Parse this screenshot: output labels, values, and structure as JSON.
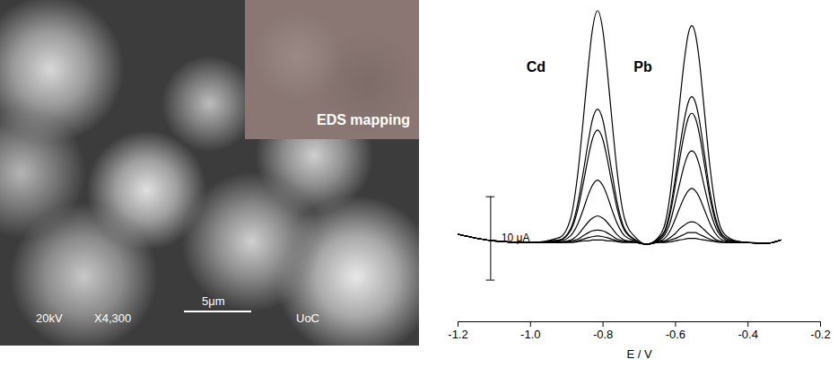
{
  "image_panel": {
    "labels": [
      "20kV",
      "X4,300",
      "5μm",
      "UoC"
    ],
    "inset": "EDS mapping"
  },
  "chart_data": {
    "type": "line",
    "x_label": "E / V",
    "color": "#000000",
    "tick_labels": "x",
    "xlim": [
      -1.2,
      -0.2
    ],
    "xticks": [
      -1.2,
      {
        "value": -1,
        "label": "-1.0"
      },
      -0.8,
      -0.6,
      -0.4,
      -0.2
    ],
    "ylim": [
      -9.5,
      28.5
    ],
    "yticks": [],
    "annotations": [
      {
        "text": "Cd",
        "x": -0.985,
        "y": 21
      },
      {
        "text": "Pb",
        "x": -0.69,
        "y": 21
      }
    ],
    "scale_bar": {
      "x": -1.11,
      "from": -4.5,
      "to": 5.5,
      "label": "10 μA"
    },
    "x": [
      -1.2,
      -1.1,
      -1.0,
      -0.92,
      -0.89,
      -0.87,
      -0.855,
      -0.84,
      -0.83,
      -0.815,
      -0.8,
      -0.79,
      -0.775,
      -0.76,
      -0.74,
      -0.71,
      -0.68,
      -0.65,
      -0.63,
      -0.615,
      -0.6,
      -0.59,
      -0.575,
      -0.565,
      -0.555,
      -0.545,
      -0.535,
      -0.52,
      -0.505,
      -0.49,
      -0.47,
      -0.44,
      -0.4,
      -0.35,
      -0.31
    ],
    "series": [
      {
        "values": [
          1.0,
          0.2,
          0,
          0.6,
          2.8,
          8.1,
          14.5,
          21.4,
          25.3,
          27.8,
          25.3,
          21.4,
          14.5,
          8.1,
          2.8,
          0.6,
          -0.2,
          0.5,
          2.1,
          5.7,
          11.7,
          16.1,
          22.1,
          25,
          26,
          25,
          22.1,
          15.6,
          9.1,
          4.4,
          1.3,
          0.3,
          0,
          -0.1,
          0.3
        ]
      },
      {
        "values": [
          1.0,
          0.2,
          0,
          0.3,
          1.6,
          4.6,
          8.3,
          12.3,
          14.6,
          16,
          14.6,
          12.3,
          8.3,
          4.6,
          1.6,
          0.3,
          -0.2,
          0.4,
          1.4,
          3.9,
          7.9,
          10.9,
          14.9,
          16.8,
          17.5,
          16.8,
          14.9,
          10.5,
          6.1,
          3.0,
          0.9,
          0.2,
          0,
          -0.1,
          0.3
        ]
      },
      {
        "values": [
          1.0,
          0.2,
          0,
          0.3,
          1.4,
          3.9,
          7.0,
          10.4,
          12.3,
          13.5,
          12.3,
          10.4,
          7.0,
          3.9,
          1.4,
          0.3,
          -0.2,
          0.3,
          1.2,
          3.4,
          7.0,
          9.6,
          13.2,
          14.9,
          15.5,
          14.9,
          13.2,
          9.3,
          5.4,
          2.6,
          0.8,
          0.2,
          0,
          -0.1,
          0.3
        ]
      },
      {
        "values": [
          1.0,
          0.2,
          0,
          0.2,
          0.8,
          2.2,
          3.9,
          5.8,
          6.8,
          7.5,
          6.8,
          5.8,
          3.9,
          2.2,
          0.8,
          0.2,
          -0.2,
          0.2,
          0.9,
          2.4,
          5.0,
          6.8,
          9.4,
          10.6,
          11,
          10.6,
          9.4,
          6.6,
          3.9,
          1.9,
          0.6,
          0.1,
          0,
          -0.1,
          0.3
        ]
      },
      {
        "values": [
          1.0,
          0.2,
          0,
          0.1,
          0.3,
          0.9,
          1.7,
          2.5,
          2.9,
          3.2,
          2.9,
          2.5,
          1.7,
          0.9,
          0.3,
          0.1,
          -0.2,
          0.1,
          0.5,
          1.4,
          2.9,
          4.0,
          5.5,
          6.2,
          6.5,
          6.2,
          5.5,
          3.9,
          2.3,
          1.1,
          0.3,
          0.1,
          0,
          -0.1,
          0.3
        ]
      },
      {
        "values": [
          1.0,
          0.2,
          0,
          0,
          0.2,
          0.4,
          0.8,
          1.2,
          1.4,
          1.5,
          1.4,
          1.2,
          0.8,
          0.4,
          0.2,
          0,
          -0.2,
          0.1,
          0.2,
          0.6,
          1.1,
          1.6,
          2.1,
          2.4,
          2.5,
          2.4,
          2.1,
          1.5,
          0.9,
          0.4,
          0.1,
          0,
          0,
          -0.1,
          0.3
        ]
      },
      {
        "values": [
          1.0,
          0.2,
          0,
          0,
          0.1,
          0.2,
          0.4,
          0.6,
          0.7,
          0.8,
          0.7,
          0.6,
          0.4,
          0.2,
          0.1,
          0,
          -0.2,
          0,
          0.1,
          0.3,
          0.5,
          0.7,
          1.0,
          1.2,
          1.2,
          1.2,
          1.0,
          0.7,
          0.4,
          0.2,
          0.1,
          0,
          0,
          -0.1,
          0.3
        ]
      },
      {
        "values": [
          1.0,
          0.2,
          0,
          0,
          0,
          0.1,
          0.2,
          0.2,
          0.3,
          0.3,
          0.3,
          0.2,
          0.2,
          0.1,
          0,
          0,
          -0.2,
          0,
          0,
          0.1,
          0.2,
          0.3,
          0.4,
          0.5,
          0.5,
          0.5,
          0.4,
          0.3,
          0.2,
          0.1,
          0,
          0,
          0,
          -0.1,
          0.3
        ]
      }
    ]
  }
}
